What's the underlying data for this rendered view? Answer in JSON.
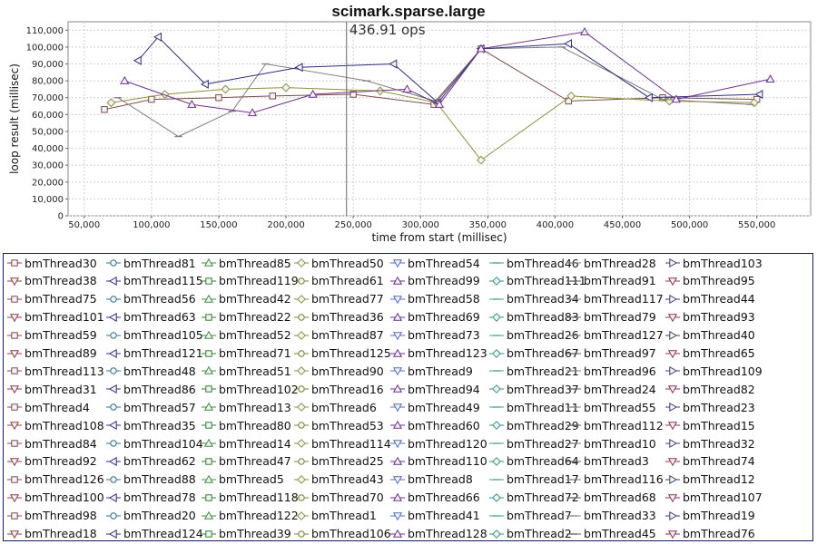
{
  "chart_data": {
    "type": "line",
    "title": "scimark.sparse.large",
    "annotation": "436.91 ops",
    "marker_x": 245000,
    "xlabel": "time from start (millisec)",
    "ylabel": "loop result (millisec)",
    "xlim": [
      38000,
      590000
    ],
    "ylim": [
      0,
      115000
    ],
    "x_ticks": [
      50000,
      100000,
      150000,
      200000,
      250000,
      300000,
      350000,
      400000,
      450000,
      500000,
      550000
    ],
    "y_ticks": [
      0,
      10000,
      20000,
      30000,
      40000,
      50000,
      60000,
      70000,
      80000,
      90000,
      100000,
      110000
    ],
    "x_tick_labels": [
      "50,000",
      "100,000",
      "150,000",
      "200,000",
      "250,000",
      "300,000",
      "350,000",
      "400,000",
      "450,000",
      "500,000",
      "550,000"
    ],
    "y_tick_labels": [
      "0",
      "10,000",
      "20,000",
      "30,000",
      "40,000",
      "50,000",
      "60,000",
      "70,000",
      "80,000",
      "90,000",
      "100,000",
      "110,000"
    ],
    "grid": true,
    "legend_placement": "bottom",
    "series_names": [
      "bmThread30",
      "bmThread81",
      "bmThread85",
      "bmThread50",
      "bmThread54",
      "bmThread46",
      "bmThread28",
      "bmThread103",
      "bmThread38",
      "bmThread115",
      "bmThread119",
      "bmThread61",
      "bmThread99",
      "bmThread111",
      "bmThread91",
      "bmThread95",
      "bmThread75",
      "bmThread56",
      "bmThread42",
      "bmThread77",
      "bmThread58",
      "bmThread34",
      "bmThread117",
      "bmThread44",
      "bmThread101",
      "bmThread63",
      "bmThread22",
      "bmThread36",
      "bmThread69",
      "bmThread83",
      "bmThread79",
      "bmThread93",
      "bmThread59",
      "bmThread105",
      "bmThread52",
      "bmThread87",
      "bmThread73",
      "bmThread26",
      "bmThread127",
      "bmThread40",
      "bmThread89",
      "bmThread121",
      "bmThread71",
      "bmThread125",
      "bmThread123",
      "bmThread67",
      "bmThread97",
      "bmThread65",
      "bmThread113",
      "bmThread48",
      "bmThread51",
      "bmThread90",
      "bmThread9",
      "bmThread21",
      "bmThread96",
      "bmThread109",
      "bmThread31",
      "bmThread86",
      "bmThread102",
      "bmThread16",
      "bmThread94",
      "bmThread37",
      "bmThread24",
      "bmThread82",
      "bmThread4",
      "bmThread57",
      "bmThread13",
      "bmThread6",
      "bmThread49",
      "bmThread11",
      "bmThread55",
      "bmThread23",
      "bmThread108",
      "bmThread35",
      "bmThread80",
      "bmThread53",
      "bmThread60",
      "bmThread29",
      "bmThread112",
      "bmThread15",
      "bmThread84",
      "bmThread104",
      "bmThread14",
      "bmThread114",
      "bmThread120",
      "bmThread27",
      "bmThread10",
      "bmThread32",
      "bmThread92",
      "bmThread62",
      "bmThread47",
      "bmThread25",
      "bmThread110",
      "bmThread64",
      "bmThread3",
      "bmThread74",
      "bmThread126",
      "bmThread88",
      "bmThread5",
      "bmThread43",
      "bmThread8",
      "bmThread17",
      "bmThread116",
      "bmThread12",
      "bmThread100",
      "bmThread78",
      "bmThread118",
      "bmThread70",
      "bmThread66",
      "bmThread72",
      "bmThread68",
      "bmThread107",
      "bmThread98",
      "bmThread20",
      "bmThread122",
      "bmThread1",
      "bmThread41",
      "bmThread7",
      "bmThread33",
      "bmThread19",
      "bmThread18",
      "bmThread124",
      "bmThread39",
      "bmThread106",
      "bmThread128",
      "bmThread2",
      "bmThread45",
      "bmThread76"
    ],
    "palette": [
      "#7f4a4a",
      "#2f6f8f",
      "#3f8f3f",
      "#8f8f3f",
      "#4f6fbf",
      "#3f9f9f",
      "#7f7f7f",
      "#3f3f6f",
      "#8f3f3f",
      "#2f2f7f",
      "#2f7f2f",
      "#7f7f2f",
      "#6f2f8f",
      "#2f8f8f",
      "#5f5f5f",
      "#8f2f5f"
    ],
    "marker_shapes": [
      "square",
      "circle",
      "triangle",
      "diamond",
      "triangle-down",
      "line",
      "line",
      "triangle-right",
      "triangle-down",
      "triangle-left",
      "square",
      "circle",
      "triangle",
      "diamond",
      "line",
      "triangle-down"
    ],
    "representative_series": [
      {
        "x": [
          65000,
          100000,
          150000,
          190000,
          250000,
          310000,
          345000,
          410000,
          480000,
          550000
        ],
        "y": [
          63000,
          69000,
          70000,
          71000,
          72000,
          66000,
          99000,
          68000,
          70000,
          69000
        ]
      },
      {
        "x": [
          70000,
          110000,
          155000,
          200000,
          270000,
          312000,
          345000,
          412000,
          485000,
          548000
        ],
        "y": [
          67000,
          72000,
          75000,
          76000,
          74000,
          67000,
          33000,
          71000,
          68000,
          67000
        ]
      },
      {
        "x": [
          75000,
          120000,
          160000,
          185000,
          260000,
          311000,
          345000,
          405000,
          480000,
          545000
        ],
        "y": [
          70000,
          47000,
          62000,
          90000,
          80000,
          68000,
          99000,
          100000,
          69000,
          66000
        ]
      },
      {
        "x": [
          90000,
          105000,
          140000,
          210000,
          280000,
          313000,
          345000,
          410000,
          470000,
          552000
        ],
        "y": [
          92000,
          106000,
          78000,
          88000,
          90000,
          67000,
          99000,
          102000,
          70000,
          72000
        ]
      },
      {
        "x": [
          80000,
          130000,
          175000,
          220000,
          290000,
          314000,
          345000,
          422000,
          490000,
          560000
        ],
        "y": [
          80000,
          66000,
          61000,
          72000,
          75000,
          66000,
          99000,
          109000,
          69000,
          81000
        ]
      }
    ]
  }
}
